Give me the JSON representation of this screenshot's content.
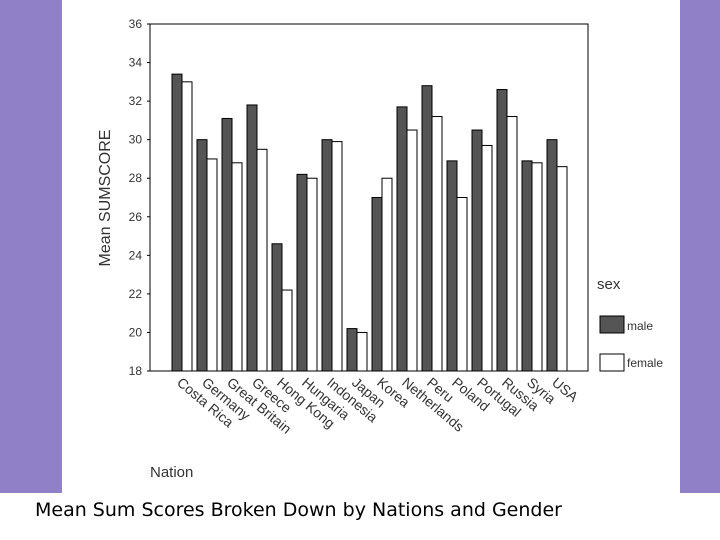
{
  "caption": "Mean Sum Scores Broken Down by Nations and Gender",
  "colors": {
    "male": "#555555",
    "female": "#ffffff",
    "background": "#9080c8"
  },
  "chart_data": {
    "type": "bar",
    "xlabel": "Nation",
    "ylabel": "Mean SUMSCORE",
    "ylim": [
      18,
      36
    ],
    "yticks": [
      18,
      20,
      22,
      24,
      26,
      28,
      30,
      32,
      34,
      36
    ],
    "legend_title": "sex",
    "legend_position": "right",
    "categories": [
      "Costa Rica",
      "Germany",
      "Great Britain",
      "Greece",
      "Hong Kong",
      "Hungaria",
      "Indonesia",
      "Japan",
      "Korea",
      "Netherlands",
      "Peru",
      "Poland",
      "Portugal",
      "Russia",
      "Syria",
      "USA"
    ],
    "series": [
      {
        "name": "male",
        "values": [
          33.4,
          30.0,
          31.1,
          31.8,
          24.6,
          28.2,
          30.0,
          20.2,
          27.0,
          31.7,
          32.8,
          28.9,
          30.5,
          32.6,
          28.9,
          30.0
        ]
      },
      {
        "name": "female",
        "values": [
          33.0,
          29.0,
          28.8,
          29.5,
          22.2,
          28.0,
          29.9,
          20.0,
          28.0,
          30.5,
          31.2,
          27.0,
          29.7,
          31.2,
          28.8,
          28.6
        ]
      }
    ]
  }
}
